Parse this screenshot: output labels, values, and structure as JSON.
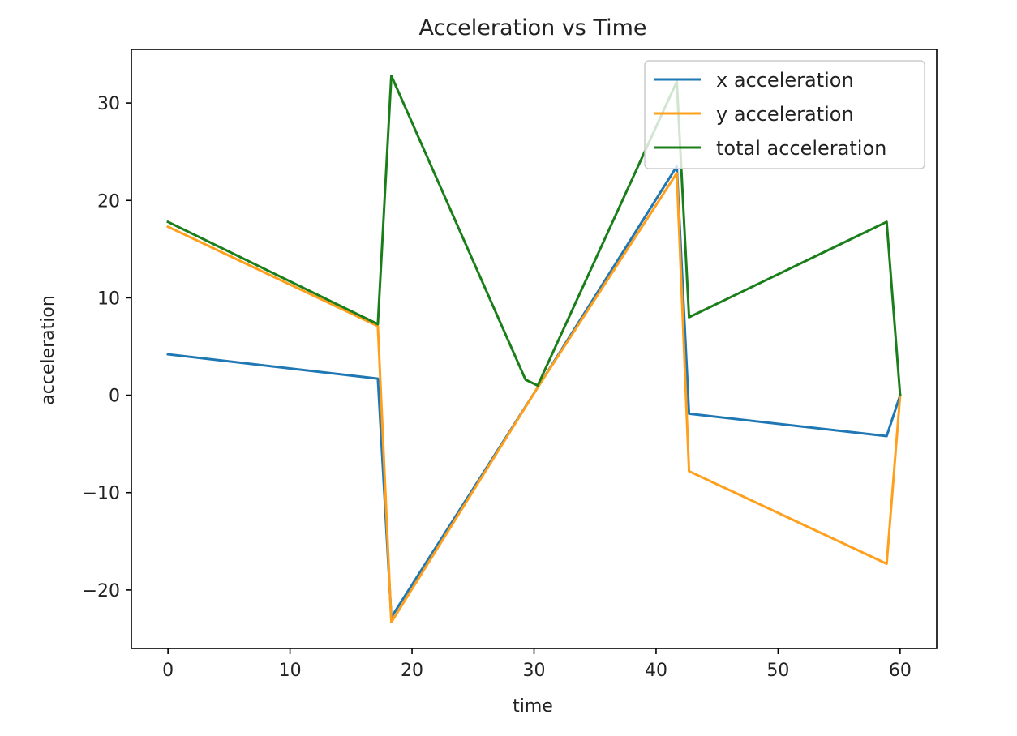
{
  "chart_data": {
    "type": "line",
    "title": "Acceleration vs Time",
    "xlabel": "time",
    "ylabel": "acceleration",
    "xlim": [
      -3,
      63
    ],
    "ylim": [
      -26,
      35.5
    ],
    "xticks": [
      0,
      10,
      20,
      30,
      40,
      50,
      60
    ],
    "xtick_labels": [
      "0",
      "10",
      "20",
      "30",
      "40",
      "50",
      "60"
    ],
    "yticks": [
      -20,
      -10,
      0,
      10,
      20,
      30
    ],
    "ytick_labels": [
      "−20",
      "−10",
      "0",
      "10",
      "20",
      "30"
    ],
    "grid": false,
    "legend_position": "top-right",
    "series": [
      {
        "name": "x acceleration",
        "color": "#1f77b4",
        "x": [
          0,
          17.2,
          18.3,
          30.3,
          41.7,
          42.7,
          58.9,
          60
        ],
        "y": [
          4.2,
          1.7,
          -22.8,
          0.8,
          23.5,
          -1.9,
          -4.2,
          0
        ]
      },
      {
        "name": "y acceleration",
        "color": "#ff9f1c",
        "x": [
          0,
          17.2,
          18.3,
          30.3,
          41.7,
          42.7,
          58.9,
          60
        ],
        "y": [
          17.3,
          7.1,
          -23.3,
          0.8,
          22.8,
          -7.8,
          -17.3,
          0
        ]
      },
      {
        "name": "total acceleration",
        "color": "#1a7f1a",
        "x": [
          0,
          17.2,
          18.3,
          29.3,
          30.3,
          41.7,
          42.7,
          58.9,
          60
        ],
        "y": [
          17.8,
          7.3,
          32.8,
          1.6,
          1.0,
          32.2,
          8.0,
          17.8,
          0
        ]
      }
    ]
  }
}
